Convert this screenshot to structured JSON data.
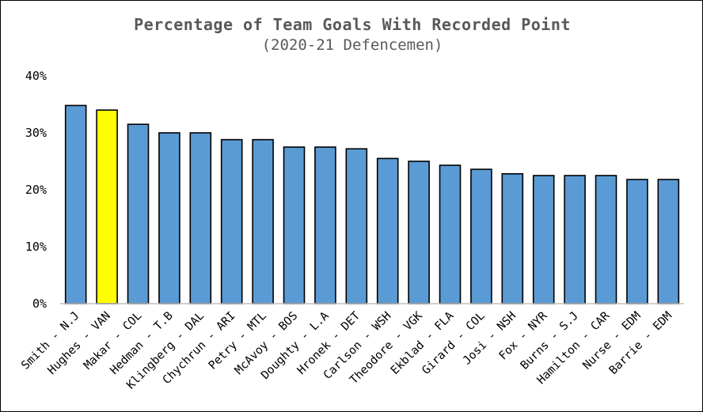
{
  "chart_data": {
    "type": "bar",
    "title": "Percentage of Team Goals With Recorded Point",
    "subtitle": "(2020-21 Defencemen)",
    "xlabel": "",
    "ylabel": "",
    "ylim": [
      0,
      40
    ],
    "y_ticks": [
      "0%",
      "10%",
      "20%",
      "30%",
      "40%"
    ],
    "y_tick_values": [
      0,
      10,
      20,
      30,
      40
    ],
    "grid": false,
    "categories": [
      "Smith - N.J",
      "Hughes - VAN",
      "Makar - COL",
      "Hedman - T.B",
      "Klingberg - DAL",
      "Chychrun - ARI",
      "Petry - MTL",
      "McAvoy - BOS",
      "Doughty - L.A",
      "Hronek - DET",
      "Carlson - WSH",
      "Theodore - VGK",
      "Ekblad - FLA",
      "Girard - COL",
      "Josi - NSH",
      "Fox - NYR",
      "Burns - S.J",
      "Hamilton - CAR",
      "Nurse - EDM",
      "Barrie - EDM"
    ],
    "values": [
      34.8,
      34.0,
      31.5,
      30.0,
      30.0,
      28.8,
      28.8,
      27.5,
      27.5,
      27.2,
      25.5,
      25.0,
      24.3,
      23.6,
      22.8,
      22.5,
      22.5,
      22.5,
      21.8,
      21.8
    ],
    "colors": {
      "default_bar": "#5b9bd5",
      "highlight_bar": "#ffff00",
      "bar_outline": "#000000",
      "axis": "#bfbfbf",
      "title": "#595959"
    },
    "highlight_index": 1
  }
}
